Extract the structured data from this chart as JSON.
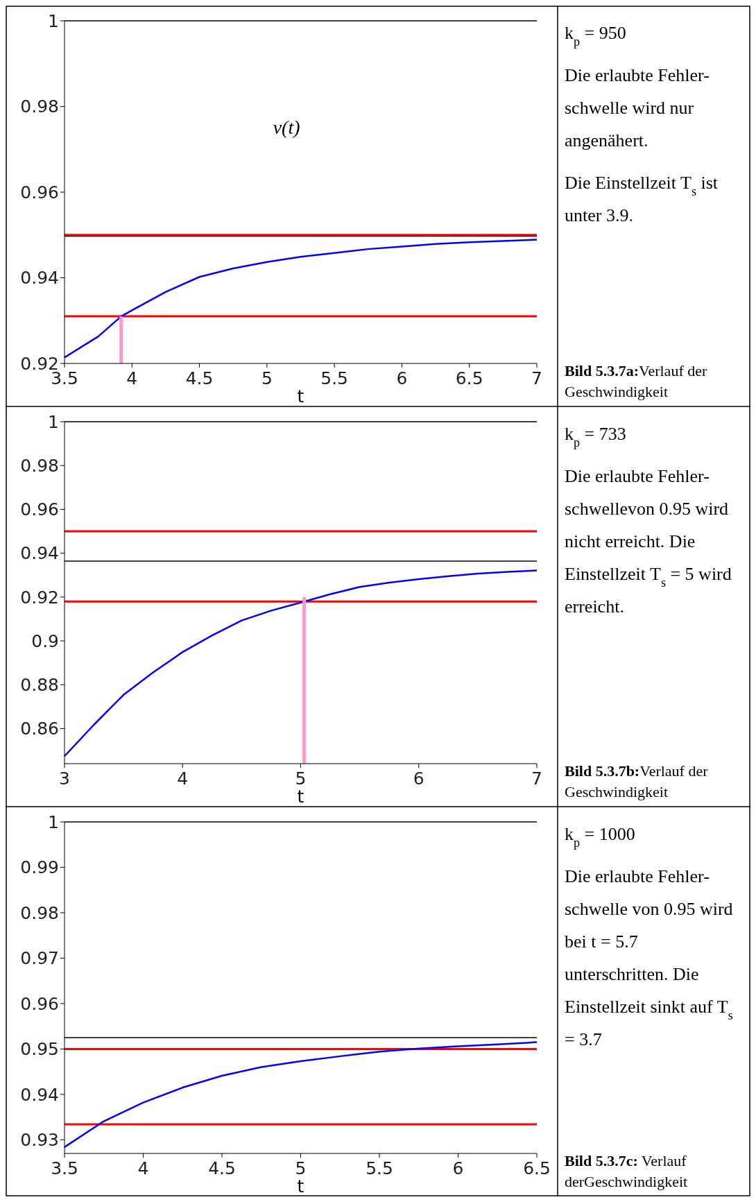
{
  "chart_data": [
    {
      "type": "line",
      "xlabel": "t",
      "xlim": [
        3.5,
        7
      ],
      "xticks": [
        3.5,
        4,
        4.5,
        5,
        5.5,
        6,
        6.5,
        7
      ],
      "ylim": [
        0.92,
        1
      ],
      "yticks": [
        0.92,
        0.94,
        0.96,
        0.98,
        1
      ],
      "annotations": [
        "v(t)"
      ],
      "series": [
        {
          "color": "#0000ff",
          "x": [
            3.5,
            3.75,
            3.92,
            4,
            4.25,
            4.5,
            4.75,
            5,
            5.25,
            5.5,
            5.75,
            6,
            6.25,
            6.5,
            7
          ],
          "values": [
            0.9214,
            0.9263,
            0.931,
            0.9324,
            0.9367,
            0.9402,
            0.9422,
            0.9437,
            0.9449,
            0.9458,
            0.9467,
            0.9473,
            0.9479,
            0.9483,
            0.9489
          ]
        },
        {
          "color": "#ff99cc",
          "x": [
            3.92,
            3.92
          ],
          "values": [
            0.92,
            0.931
          ]
        }
      ],
      "ref_lines": [
        {
          "axis": "y",
          "value": 1,
          "color": "#000000"
        },
        {
          "axis": "y",
          "value": 0.9497,
          "color": "#000000"
        },
        {
          "axis": "y",
          "value": 0.95,
          "color": "#ff0000"
        },
        {
          "axis": "y",
          "value": 0.931,
          "color": "#ff0000"
        }
      ]
    },
    {
      "type": "other",
      "title": "Bild 5.3.7a:Verlauf der Geschwindigkeit",
      "annotations": [
        "k$_{p}$ = 950",
        "Die erlaubte Fehler-schwelle wird nur angenähert.",
        "Die Einstellzeit T$_{s}$ ist unter 3.9."
      ]
    },
    {
      "type": "line",
      "xlabel": "t",
      "xlim": [
        3,
        7
      ],
      "xticks": [
        3,
        4,
        5,
        6,
        7
      ],
      "ylim": [
        0.844,
        1
      ],
      "yticks": [
        0.86,
        0.88,
        0.9,
        0.92,
        0.94,
        0.96,
        0.98,
        1
      ],
      "series": [
        {
          "color": "#0000ff",
          "x": [
            3,
            3.25,
            3.5,
            3.75,
            4,
            4.25,
            4.5,
            4.75,
            5,
            5.25,
            5.5,
            5.75,
            6,
            6.25,
            6.5,
            6.75,
            7
          ],
          "values": [
            0.8474,
            0.8618,
            0.8754,
            0.8856,
            0.8949,
            0.9025,
            0.9093,
            0.9138,
            0.9175,
            0.9213,
            0.9246,
            0.9266,
            0.9282,
            0.9295,
            0.9307,
            0.9315,
            0.9321
          ]
        },
        {
          "color": "#ff99cc",
          "x": [
            5.03,
            5.03
          ],
          "values": [
            0.844,
            0.92
          ]
        }
      ],
      "ref_lines": [
        {
          "axis": "y",
          "value": 1,
          "color": "#000000"
        },
        {
          "axis": "y",
          "value": 0.9364,
          "color": "#000000"
        },
        {
          "axis": "y",
          "value": 0.95,
          "color": "#ff0000"
        },
        {
          "axis": "y",
          "value": 0.918,
          "color": "#ff0000"
        }
      ]
    },
    {
      "type": "other",
      "title": "Bild 5.3.7b:Verlauf der Geschwindigkeit",
      "annotations": [
        "k$_{p}$ = 733",
        "Die erlaubte Fehler-schwellevon 0.95 wird nicht erreicht. Die Einstellzeit T$_{s}$ = 5 wird erreicht."
      ]
    },
    {
      "type": "line",
      "xlabel": "t",
      "xlim": [
        3.5,
        6.5
      ],
      "xticks": [
        3.5,
        4,
        4.5,
        5,
        5.5,
        6,
        6.5
      ],
      "ylim": [
        0.927,
        1
      ],
      "yticks": [
        0.93,
        0.94,
        0.95,
        0.96,
        0.97,
        0.98,
        0.99,
        1
      ],
      "series": [
        {
          "color": "#0000ff",
          "x": [
            3.5,
            3.75,
            4,
            4.25,
            4.5,
            4.75,
            5,
            5.25,
            5.5,
            5.75,
            6,
            6.25,
            6.5
          ],
          "values": [
            0.9284,
            0.9341,
            0.9382,
            0.9415,
            0.9441,
            0.946,
            0.9473,
            0.9484,
            0.9494,
            0.9501,
            0.9506,
            0.951,
            0.9515
          ]
        }
      ],
      "ref_lines": [
        {
          "axis": "y",
          "value": 1,
          "color": "#000000"
        },
        {
          "axis": "y",
          "value": 0.9525,
          "color": "#000000"
        },
        {
          "axis": "y",
          "value": 0.95,
          "color": "#ff0000"
        },
        {
          "axis": "y",
          "value": 0.9334,
          "color": "#ff0000"
        }
      ]
    },
    {
      "type": "other",
      "title": "Bild 5.3.7c: Verlauf derGeschwindigkeit",
      "annotations": [
        "k$_{p}$ = 1000",
        "Die erlaubte Fehler-schwelle von 0.95 wird bei t = 5.7 unterschritten. Die Einstellzeit sinkt auf T$_{s}$ = 3.7"
      ]
    }
  ]
}
